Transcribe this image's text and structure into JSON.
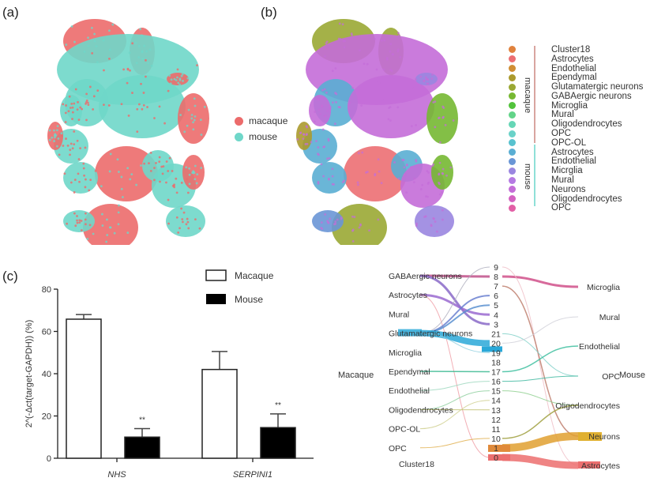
{
  "panels": {
    "a": {
      "label": "(a)",
      "legend": [
        {
          "name": "macaque",
          "color": "#ec6b6b"
        },
        {
          "name": "mouse",
          "color": "#6fd7c9"
        }
      ]
    },
    "b": {
      "label": "(b)",
      "legend_groups": [
        {
          "group": "macaque",
          "group_color": "#d9a5a0",
          "items": [
            {
              "name": "Cluster18",
              "color": "#e0823d"
            },
            {
              "name": "Astrocytes",
              "color": "#ec6f73"
            },
            {
              "name": "Endothelial",
              "color": "#d08e34"
            },
            {
              "name": "Ependymal",
              "color": "#ab9a2e"
            },
            {
              "name": "Glutamatergic neurons",
              "color": "#9aa834"
            },
            {
              "name": "GABAergic neurons",
              "color": "#76b832"
            },
            {
              "name": "Microglia",
              "color": "#52c33c"
            },
            {
              "name": "Mural",
              "color": "#62d489"
            },
            {
              "name": "Oligodendrocytes",
              "color": "#66d6b6"
            },
            {
              "name": "OPC",
              "color": "#6ad2c8"
            },
            {
              "name": "OPC-OL",
              "color": "#58c2cf"
            }
          ]
        },
        {
          "group": "mouse",
          "group_color": "#8fe0d8",
          "items": [
            {
              "name": "Astrocytes",
              "color": "#5aaed3"
            },
            {
              "name": "Endothelial",
              "color": "#6a96d6"
            },
            {
              "name": "Micrglia",
              "color": "#9a86e0"
            },
            {
              "name": "Mural",
              "color": "#b57ae3"
            },
            {
              "name": "Neurons",
              "color": "#c46dd8"
            },
            {
              "name": "Oligodendrocytes",
              "color": "#d462c2"
            },
            {
              "name": "OPC",
              "color": "#e25fa6"
            }
          ]
        }
      ]
    },
    "c": {
      "label": "(c)"
    }
  },
  "chart_data": [
    {
      "type": "bar",
      "title": "",
      "panel": "(c)",
      "categories": [
        "NHS",
        "SERPINI1"
      ],
      "series": [
        {
          "name": "Macaque",
          "fill": "#ffffff",
          "values": [
            65.8,
            42.0
          ],
          "error_upper": [
            68.0,
            50.5
          ]
        },
        {
          "name": "Mouse",
          "fill": "#000000",
          "values": [
            10.0,
            14.5
          ],
          "error_upper": [
            14.0,
            21.0
          ]
        }
      ],
      "significance": [
        "**",
        "**"
      ],
      "ylabel": "2^(-Δct(target-GAPDH)) (%)",
      "xlabel": "",
      "ylim": [
        0,
        80
      ],
      "yticks": [
        0,
        20,
        40,
        60,
        80
      ],
      "legend_position": "top-right"
    },
    {
      "type": "sankey",
      "left_title": "Macaque",
      "right_title": "Mouse",
      "left_nodes": [
        "GABAergic neurons",
        "Astrocytes",
        "Mural",
        "Glutamatergic neurons",
        "Microglia",
        "Ependymal",
        "Endothelial",
        "Oligodendrocytes",
        "OPC-OL",
        "OPC",
        "Cluster18"
      ],
      "middle_nodes": [
        "9",
        "8",
        "7",
        "6",
        "5",
        "4",
        "3",
        "21",
        "20",
        "19",
        "18",
        "17",
        "16",
        "15",
        "14",
        "13",
        "12",
        "11",
        "10",
        "1",
        "0"
      ],
      "right_nodes": [
        "Microglia",
        "Mural",
        "Endothelial",
        "OPC",
        "Oligodendrocytes",
        "Neurons",
        "Astrocytes"
      ],
      "left_links": [
        {
          "from": "GABAergic neurons",
          "to": "8",
          "weight": 3,
          "color": "#c0508a"
        },
        {
          "from": "GABAergic neurons",
          "to": "3",
          "weight": 3,
          "color": "#8a6ac8"
        },
        {
          "from": "Astrocytes",
          "to": "4",
          "weight": 3,
          "color": "#9a6ad0"
        },
        {
          "from": "Astrocytes",
          "to": "0",
          "weight": 1,
          "color": "#f0a0a8"
        },
        {
          "from": "Glutamatergic neurons",
          "to": "9",
          "weight": 1,
          "color": "#b0b0c0"
        },
        {
          "from": "Glutamatergic neurons",
          "to": "6",
          "weight": 2,
          "color": "#6a80d0"
        },
        {
          "from": "Glutamatergic neurons",
          "to": "5",
          "weight": 2,
          "color": "#5a90d0"
        },
        {
          "from": "Glutamatergic neurons",
          "to": "20",
          "weight": 8,
          "color": "#2aa8d8"
        },
        {
          "from": "Glutamatergic neurons",
          "to": "19",
          "weight": 1,
          "color": "#90d0e0"
        },
        {
          "from": "Ependymal",
          "to": "17",
          "weight": 1.5,
          "color": "#3ab890"
        },
        {
          "from": "Endothelial",
          "to": "16",
          "weight": 1,
          "color": "#a0d8c0"
        },
        {
          "from": "Oligodendrocytes",
          "to": "15",
          "weight": 1,
          "color": "#90d0a0"
        },
        {
          "from": "Oligodendrocytes",
          "to": "13",
          "weight": 1,
          "color": "#c0c070"
        },
        {
          "from": "OPC-OL",
          "to": "14",
          "weight": 1,
          "color": "#d0d090"
        },
        {
          "from": "OPC",
          "to": "10",
          "weight": 1,
          "color": "#e0b050"
        }
      ],
      "right_links": [
        {
          "from": "8",
          "to": "Microglia",
          "weight": 3,
          "color": "#d0508a"
        },
        {
          "from": "9",
          "to": "Astrocytes",
          "weight": 1,
          "color": "#f0c0c8"
        },
        {
          "from": "7",
          "to": "Neurons",
          "weight": 1.5,
          "color": "#c08070"
        },
        {
          "from": "21",
          "to": "OPC",
          "weight": 1,
          "color": "#80d0c8"
        },
        {
          "from": "20",
          "to": "Mural",
          "weight": 1,
          "color": "#d0d0d8"
        },
        {
          "from": "17",
          "to": "Endothelial",
          "weight": 1.5,
          "color": "#40c0a0"
        },
        {
          "from": "16",
          "to": "OPC",
          "weight": 1,
          "color": "#40b8a0"
        },
        {
          "from": "15",
          "to": "Oligodendrocytes",
          "weight": 1,
          "color": "#90d090"
        },
        {
          "from": "10",
          "to": "Oligodendrocytes",
          "weight": 1.5,
          "color": "#a0a040"
        },
        {
          "from": "1",
          "to": "Neurons",
          "weight": 10,
          "color": "#e0a030"
        },
        {
          "from": "0",
          "to": "Astrocytes",
          "weight": 9,
          "color": "#ec6f6f"
        }
      ]
    }
  ]
}
